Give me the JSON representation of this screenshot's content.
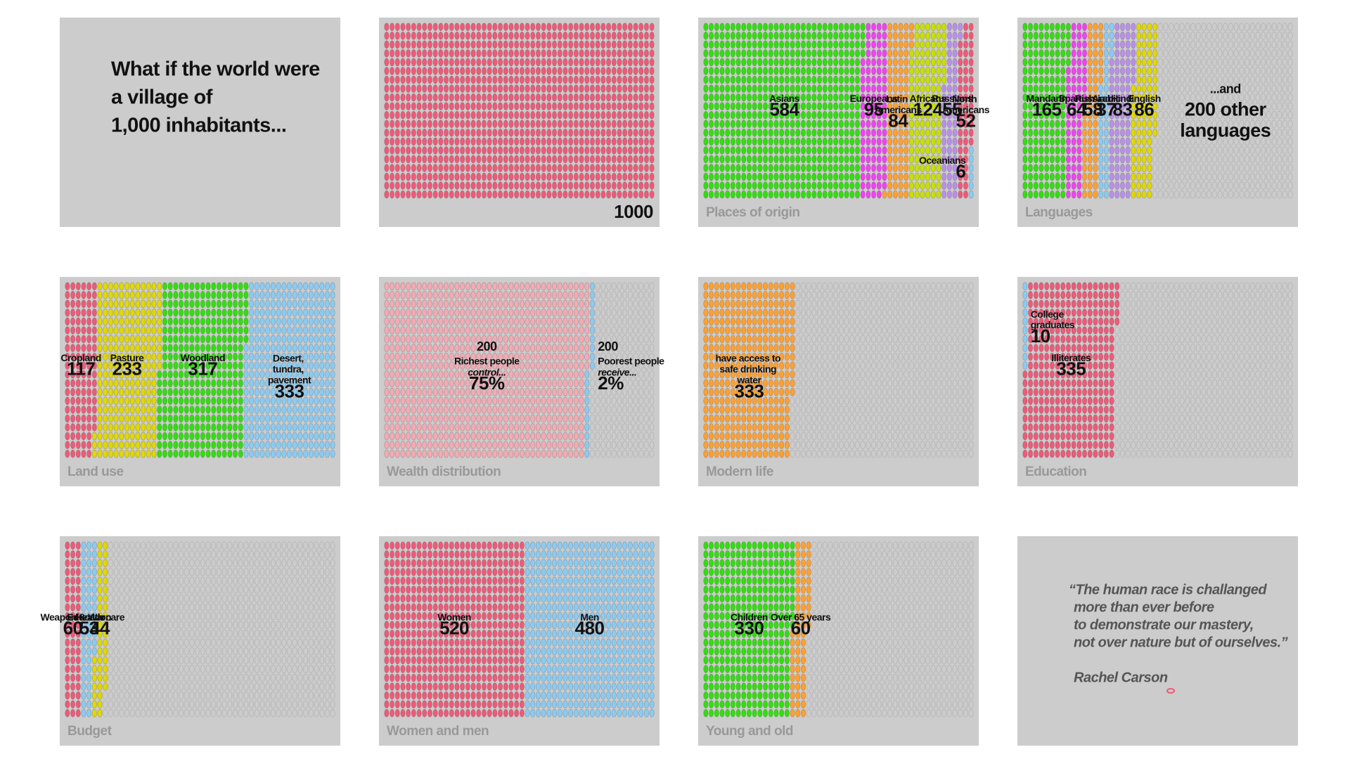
{
  "intro": [
    "What if the world were",
    "a village of",
    "1,000 inhabitants..."
  ],
  "quote": {
    "lines": [
      "“The human race is challanged",
      "more than ever before",
      "to demonstrate our mastery,",
      "not over nature but of ourselves.”"
    ],
    "author": "Rachel Carson"
  },
  "chart_data": [
    {
      "type": "waffle",
      "total": 1000,
      "series": [
        {
          "color": "#ee5a78",
          "value": 1000
        }
      ]
    },
    {
      "type": "waffle",
      "total": 1000,
      "title": "Places of origin",
      "series": [
        {
          "name": "Asians",
          "color": "#33dd11",
          "value": 584
        },
        {
          "name": "Europeans",
          "color": "#ee44ee",
          "value": 95
        },
        {
          "name": "Latin Americans",
          "color": "#ffa030",
          "value": 84
        },
        {
          "name": "Africans",
          "color": "#c8e000",
          "value": 124
        },
        {
          "name": "Russians",
          "color": "#b890e8",
          "value": 55
        },
        {
          "name": "North Americans",
          "color": "#ee5a78",
          "value": 52
        },
        {
          "name": "Oceanians",
          "color": "#88ccf5",
          "value": 6
        }
      ]
    },
    {
      "type": "waffle",
      "total": 1000,
      "title": "Languages",
      "annotation": [
        "...and",
        "200 other",
        "languages"
      ],
      "series": [
        {
          "name": "Mandarin",
          "color": "#33dd11",
          "value": 165
        },
        {
          "name": "Spanish",
          "color": "#ee44ee",
          "value": 64
        },
        {
          "name": "Russian",
          "color": "#ffa030",
          "value": 58
        },
        {
          "name": "Arabic",
          "color": "#88ccf5",
          "value": 37
        },
        {
          "name": "Hindi",
          "color": "#b890e8",
          "value": 83
        },
        {
          "name": "English",
          "color": "#e0d800",
          "value": 86
        }
      ]
    },
    {
      "type": "waffle",
      "total": 1000,
      "title": "Land use",
      "series": [
        {
          "name": "Cropland",
          "color": "#ee5a78",
          "value": 117
        },
        {
          "name": "Pasture",
          "color": "#e0d800",
          "value": 233
        },
        {
          "name": "Woodland",
          "color": "#33dd11",
          "value": 317
        },
        {
          "name": "Desert, tundra, pavement",
          "color": "#88ccf5",
          "value": 333
        }
      ]
    },
    {
      "type": "waffle",
      "total": 100,
      "title": "Wealth distribution",
      "series": [
        {
          "count": 200,
          "name": "Richest people",
          "note": "control...",
          "color": "#f4aab4",
          "value": 75,
          "value_label": "75%"
        },
        {
          "count": 200,
          "name": "Poorest people",
          "note": "receive...",
          "color": "#88ccf5",
          "value": 2,
          "value_label": "2%"
        }
      ]
    },
    {
      "type": "waffle",
      "total": 1000,
      "title": "Modern life",
      "series": [
        {
          "name": "have access to safe drinking water",
          "color": "#ffa030",
          "value": 333
        }
      ]
    },
    {
      "type": "waffle",
      "total": 1000,
      "title": "Education",
      "series": [
        {
          "name": "College graduates",
          "color": "#88ccf5",
          "value": 10
        },
        {
          "name": "Illiterates",
          "color": "#ee5a78",
          "value": 335
        }
      ]
    },
    {
      "type": "waffle",
      "total": 1000,
      "title": "Budget",
      "series": [
        {
          "name": "Weapon & War",
          "color": "#ee5a78",
          "value": 60
        },
        {
          "name": "Education",
          "color": "#88ccf5",
          "value": 53
        },
        {
          "name": "Health care",
          "color": "#e0d800",
          "value": 44
        }
      ]
    },
    {
      "type": "waffle",
      "total": 1000,
      "title": "Women and men",
      "series": [
        {
          "name": "Women",
          "color": "#ee5a78",
          "value": 520
        },
        {
          "name": "Men",
          "color": "#88ccf5",
          "value": 480
        }
      ]
    },
    {
      "type": "waffle",
      "total": 1000,
      "title": "Young and old",
      "series": [
        {
          "name": "Children",
          "color": "#33dd11",
          "value": 330
        },
        {
          "name": "Over 65 years",
          "color": "#ffa030",
          "value": 60
        }
      ]
    }
  ]
}
